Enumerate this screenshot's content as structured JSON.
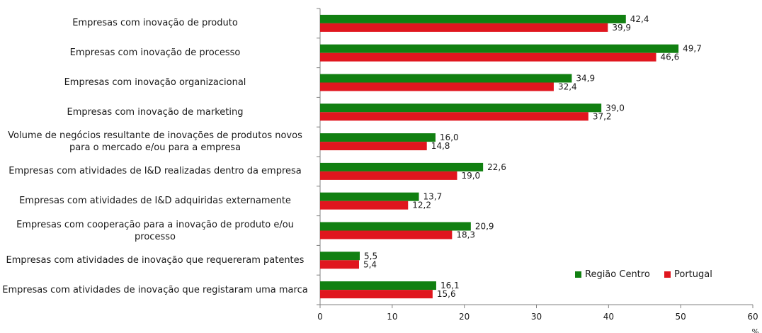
{
  "chart_data": {
    "type": "bar",
    "orientation": "horizontal",
    "categories": [
      "Empresas com inovação de produto",
      "Empresas com inovação de processo",
      "Empresas com inovação organizacional",
      "Empresas com inovação de marketing",
      "Volume de negócios resultante de inovações de produtos novos para o mercado e/ou para a empresa",
      "Empresas com atividades de I&D realizadas dentro da empresa",
      "Empresas com atividades de I&D adquiridas externamente",
      "Empresas com cooperação para a inovação de produto e/ou processo",
      "Empresas com atividades de inovação que requereram patentes",
      "Empresas com atividades de inovação que registaram uma marca"
    ],
    "series": [
      {
        "name": "Região Centro",
        "color": "#118011",
        "values": [
          42.4,
          49.7,
          34.9,
          39.0,
          16.0,
          22.6,
          13.7,
          20.9,
          5.5,
          16.1
        ],
        "labels": [
          "42,4",
          "49,7",
          "34,9",
          "39,0",
          "16,0",
          "22,6",
          "13,7",
          "20,9",
          "5,5",
          "16,1"
        ]
      },
      {
        "name": "Portugal",
        "color": "#e0161e",
        "values": [
          39.9,
          46.6,
          32.4,
          37.2,
          14.8,
          19.0,
          12.2,
          18.3,
          5.4,
          15.6
        ],
        "labels": [
          "39,9",
          "46,6",
          "32,4",
          "37,2",
          "14,8",
          "19,0",
          "12,2",
          "18,3",
          "5,4",
          "15,6"
        ]
      }
    ],
    "xlim": [
      0,
      60
    ],
    "xticks": [
      0,
      10,
      20,
      30,
      40,
      50,
      60
    ],
    "xunit": "%",
    "grid": false,
    "legend_position": "bottom-right inside plot"
  }
}
